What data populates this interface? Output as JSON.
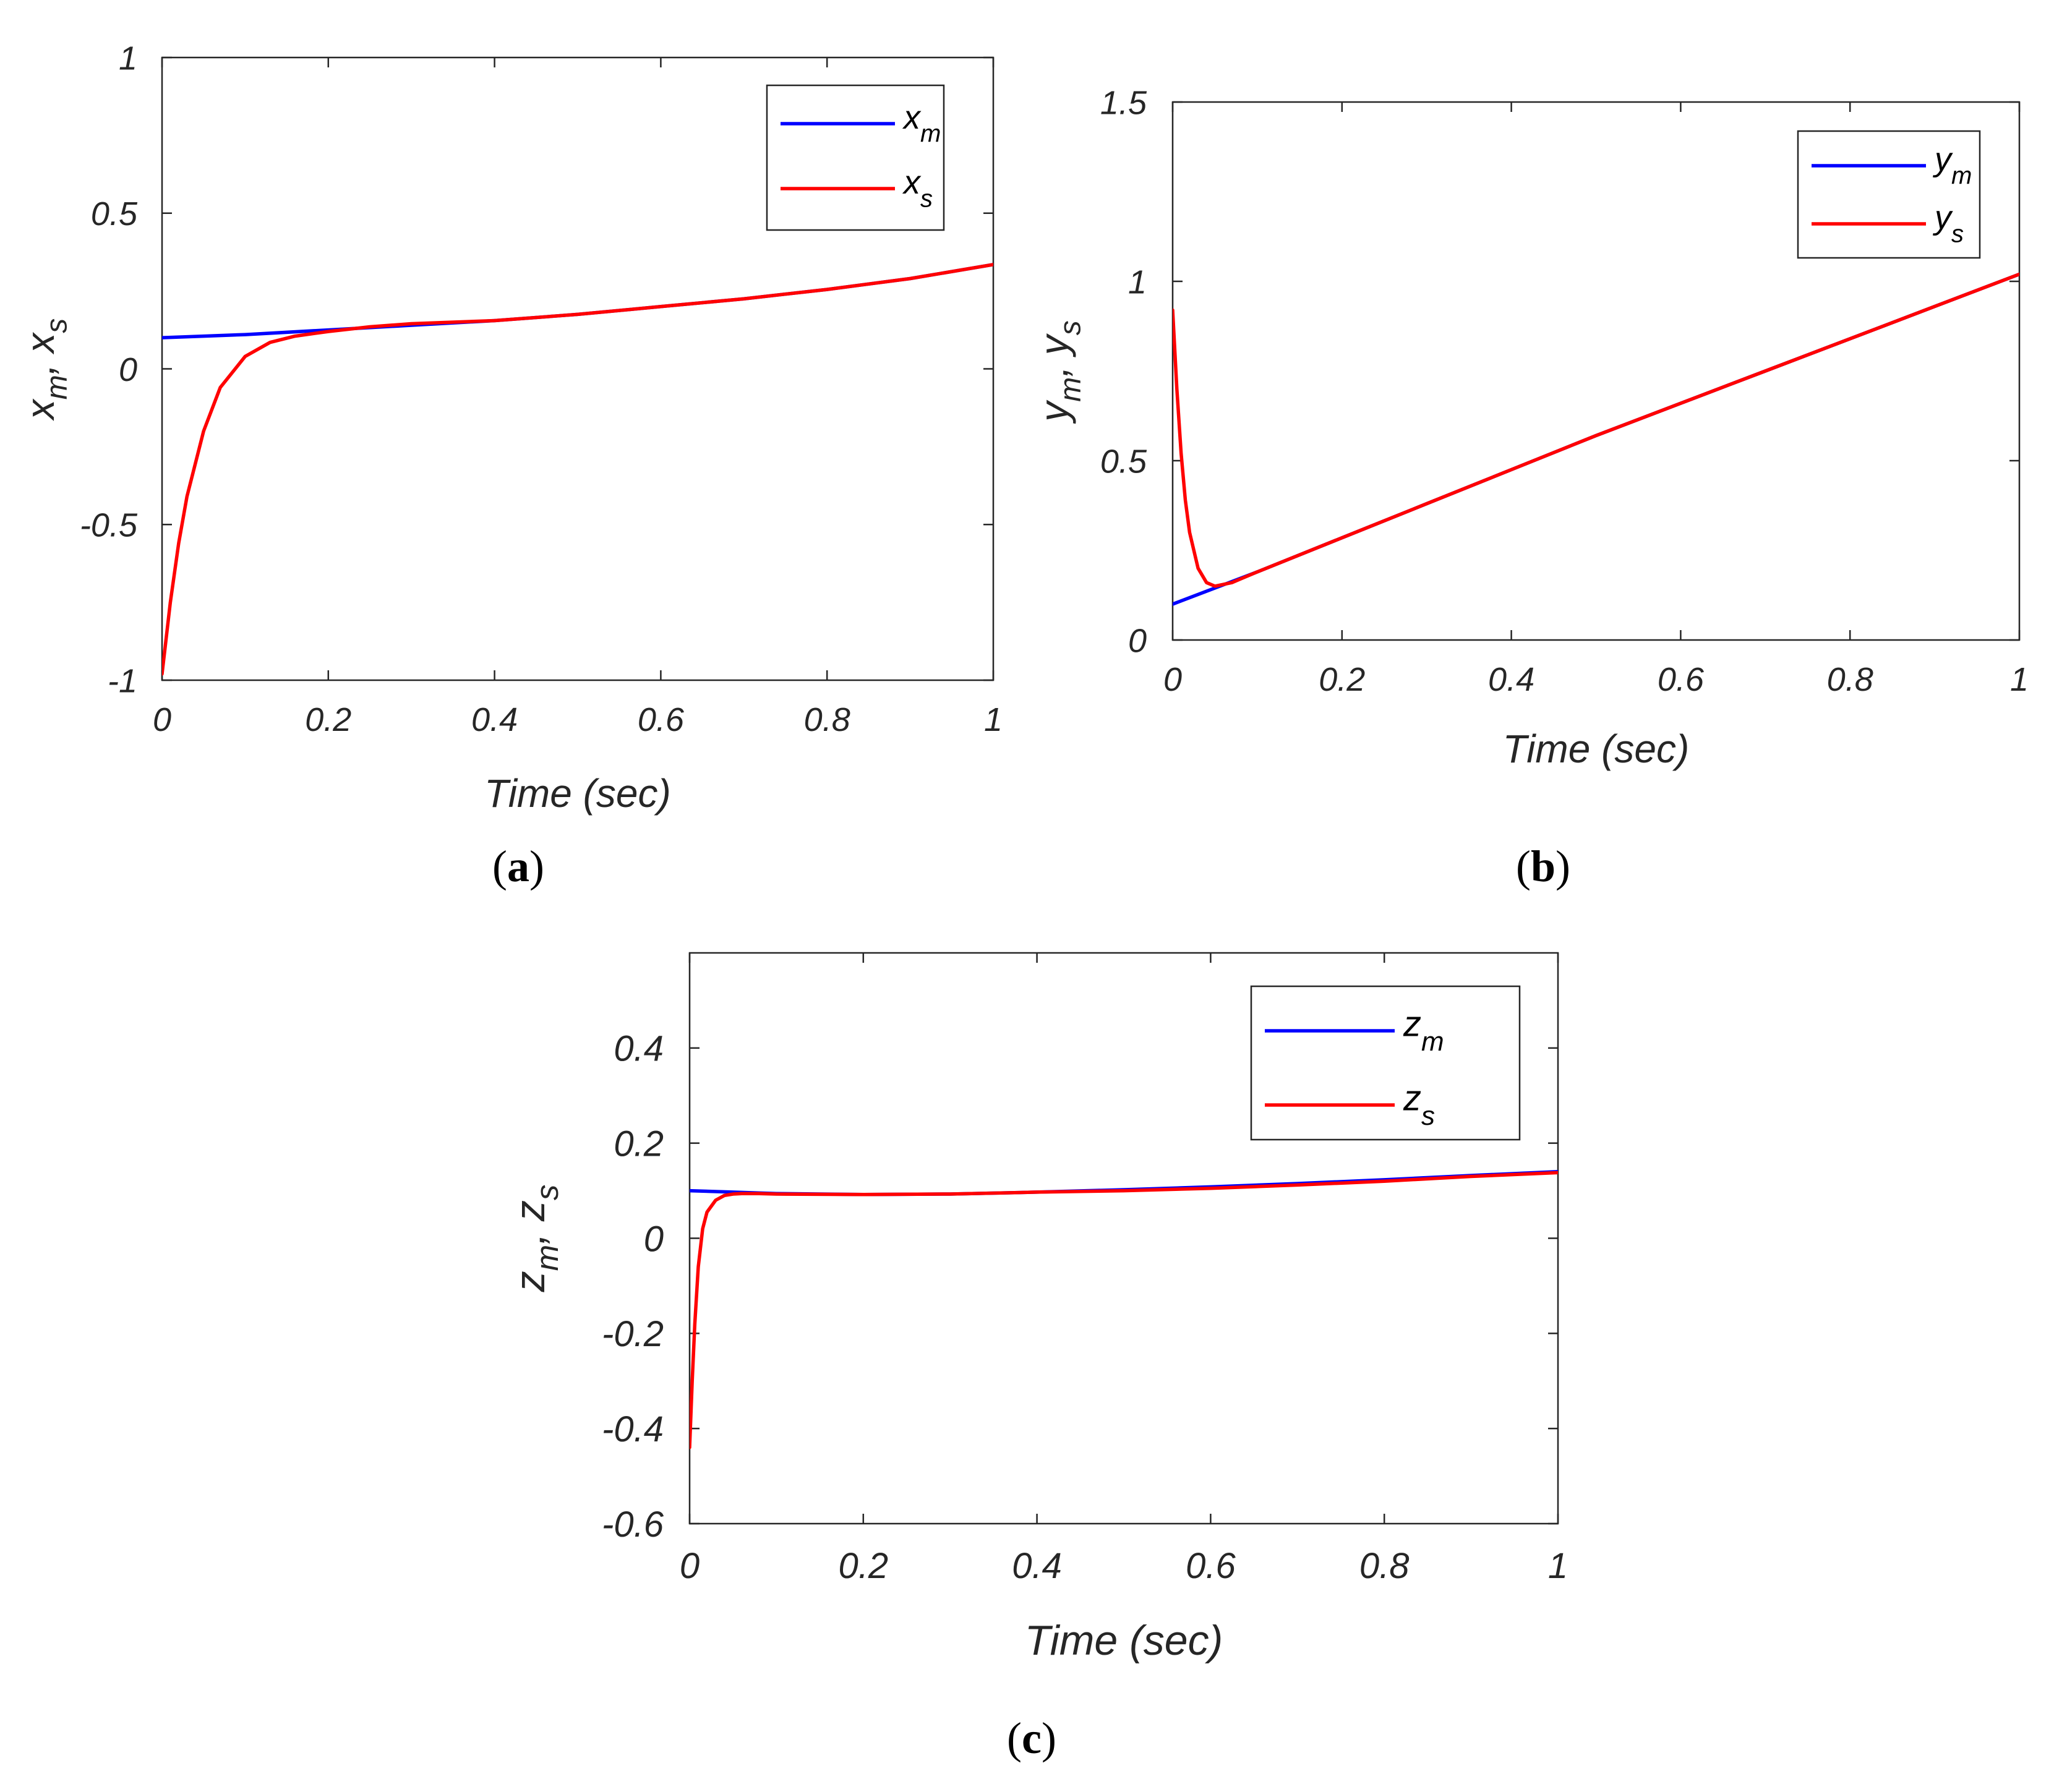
{
  "colors": {
    "master": "#0000ff",
    "slave": "#ff0000",
    "axis": "#262626"
  },
  "chart_data": [
    {
      "type": "line",
      "caption_letter": "a",
      "xlabel": "Time (sec)",
      "ylabel": "xm, xs",
      "xlim": [
        0,
        1
      ],
      "ylim": [
        -1,
        1
      ],
      "xticks": [
        "0",
        "0.2",
        "0.4",
        "0.6",
        "0.8",
        "1"
      ],
      "yticks": [
        "-1",
        "-0.5",
        "0",
        "0.5",
        "1"
      ],
      "legend": {
        "placement": "top-right",
        "entries": [
          {
            "base": "x",
            "sub": "m"
          },
          {
            "base": "x",
            "sub": "s"
          }
        ]
      },
      "series": [
        {
          "name": "xm",
          "color": "#0000ff",
          "x": [
            0,
            0.05,
            0.1,
            0.2,
            0.3,
            0.4,
            0.5,
            0.6,
            0.7,
            0.8,
            0.9,
            1.0
          ],
          "y": [
            0.1,
            0.105,
            0.11,
            0.125,
            0.14,
            0.155,
            0.175,
            0.2,
            0.225,
            0.255,
            0.29,
            0.335
          ]
        },
        {
          "name": "xs",
          "color": "#ff0000",
          "x": [
            0,
            0.01,
            0.02,
            0.03,
            0.05,
            0.07,
            0.1,
            0.13,
            0.16,
            0.2,
            0.25,
            0.3,
            0.35,
            0.4,
            0.5,
            0.6,
            0.7,
            0.8,
            0.9,
            1.0
          ],
          "y": [
            -0.98,
            -0.75,
            -0.56,
            -0.41,
            -0.2,
            -0.06,
            0.04,
            0.085,
            0.105,
            0.12,
            0.135,
            0.145,
            0.15,
            0.155,
            0.175,
            0.2,
            0.225,
            0.255,
            0.29,
            0.335
          ]
        }
      ]
    },
    {
      "type": "line",
      "caption_letter": "b",
      "xlabel": "Time (sec)",
      "ylabel": "ym, ys",
      "xlim": [
        0,
        1
      ],
      "ylim": [
        0,
        1.5
      ],
      "xticks": [
        "0",
        "0.2",
        "0.4",
        "0.6",
        "0.8",
        "1"
      ],
      "yticks": [
        "0",
        "0.5",
        "1",
        "1.5"
      ],
      "legend": {
        "placement": "top-right",
        "entries": [
          {
            "base": "y",
            "sub": "m"
          },
          {
            "base": "y",
            "sub": "s"
          }
        ]
      },
      "series": [
        {
          "name": "ym",
          "color": "#0000ff",
          "x": [
            0,
            0.1,
            0.2,
            0.3,
            0.4,
            0.5,
            0.6,
            0.7,
            0.8,
            0.9,
            1.0
          ],
          "y": [
            0.1,
            0.19,
            0.285,
            0.38,
            0.475,
            0.57,
            0.66,
            0.75,
            0.84,
            0.93,
            1.02
          ]
        },
        {
          "name": "ys",
          "color": "#ff0000",
          "x": [
            0,
            0.005,
            0.01,
            0.015,
            0.02,
            0.03,
            0.04,
            0.05,
            0.06,
            0.07,
            0.08,
            0.1,
            0.2,
            0.3,
            0.4,
            0.5,
            0.6,
            0.7,
            0.8,
            0.9,
            1.0
          ],
          "y": [
            0.92,
            0.7,
            0.52,
            0.39,
            0.3,
            0.2,
            0.16,
            0.15,
            0.155,
            0.16,
            0.17,
            0.19,
            0.285,
            0.38,
            0.475,
            0.57,
            0.66,
            0.75,
            0.84,
            0.93,
            1.02
          ]
        }
      ]
    },
    {
      "type": "line",
      "caption_letter": "c",
      "xlabel": "Time (sec)",
      "ylabel": "zm, zs",
      "xlim": [
        0,
        1
      ],
      "ylim": [
        -0.6,
        0.6
      ],
      "xticks": [
        "0",
        "0.2",
        "0.4",
        "0.6",
        "0.8",
        "1"
      ],
      "yticks": [
        "-0.6",
        "-0.4",
        "-0.2",
        "0",
        "0.2",
        "0.4"
      ],
      "legend": {
        "placement": "top-right",
        "entries": [
          {
            "base": "z",
            "sub": "m"
          },
          {
            "base": "z",
            "sub": "s"
          }
        ]
      },
      "series": [
        {
          "name": "zm",
          "color": "#0000ff",
          "x": [
            0,
            0.05,
            0.1,
            0.2,
            0.3,
            0.4,
            0.5,
            0.6,
            0.7,
            0.8,
            0.9,
            1.0
          ],
          "y": [
            0.1,
            0.097,
            0.094,
            0.092,
            0.093,
            0.097,
            0.102,
            0.108,
            0.115,
            0.123,
            0.132,
            0.14
          ]
        },
        {
          "name": "zs",
          "color": "#ff0000",
          "x": [
            0,
            0.003,
            0.006,
            0.01,
            0.015,
            0.02,
            0.03,
            0.04,
            0.05,
            0.06,
            0.08,
            0.1,
            0.2,
            0.3,
            0.4,
            0.5,
            0.6,
            0.7,
            0.8,
            0.9,
            1.0
          ],
          "y": [
            -0.44,
            -0.3,
            -0.18,
            -0.06,
            0.02,
            0.055,
            0.08,
            0.09,
            0.093,
            0.094,
            0.094,
            0.093,
            0.092,
            0.093,
            0.097,
            0.1,
            0.105,
            0.112,
            0.12,
            0.13,
            0.138
          ]
        }
      ]
    }
  ]
}
